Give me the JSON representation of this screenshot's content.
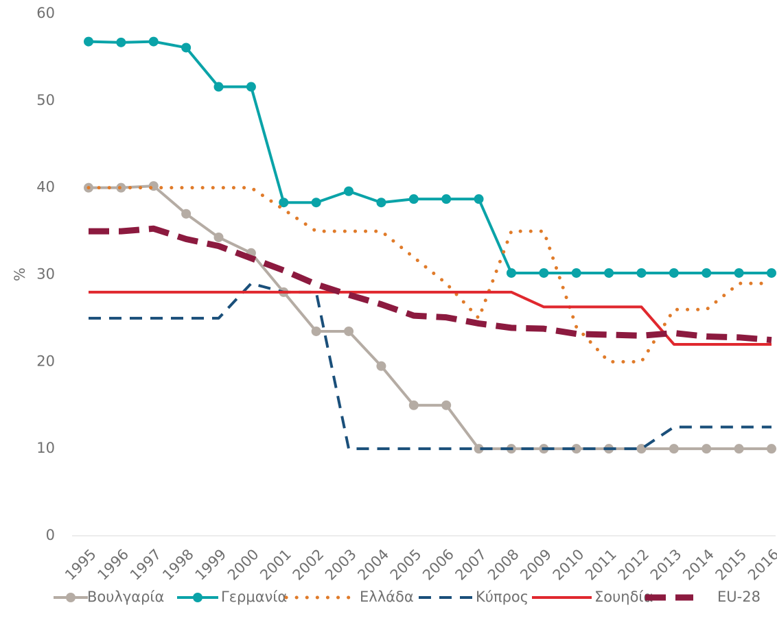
{
  "chart_data": {
    "type": "line",
    "y_label": "%",
    "categories": [
      "1995",
      "1996",
      "1997",
      "1998",
      "1999",
      "2000",
      "2001",
      "2002",
      "2003",
      "2004",
      "2005",
      "2006",
      "2007",
      "2008",
      "2009",
      "2010",
      "2011",
      "2012",
      "2013",
      "2014",
      "2015",
      "2016"
    ],
    "ylim": [
      0,
      60
    ],
    "yticks": [
      0,
      10,
      20,
      30,
      40,
      50,
      60
    ],
    "legend": "bottom",
    "series": [
      {
        "name": "Βουλγαρία",
        "color": "#b5aca4",
        "line_style": "solid",
        "marker": true,
        "values": [
          40,
          40,
          40.2,
          37,
          34.3,
          32.5,
          28,
          23.5,
          23.5,
          19.5,
          15,
          15,
          10,
          10,
          10,
          10,
          10,
          10,
          10,
          10,
          10,
          10
        ]
      },
      {
        "name": "Γερμανία",
        "color": "#0aa3a8",
        "line_style": "solid",
        "marker": true,
        "values": [
          56.8,
          56.7,
          56.8,
          56.1,
          51.6,
          51.6,
          38.3,
          38.3,
          39.6,
          38.3,
          38.7,
          38.7,
          38.7,
          30.2,
          30.2,
          30.2,
          30.2,
          30.2,
          30.2,
          30.2,
          30.2,
          30.2
        ]
      },
      {
        "name": "Ελλάδα",
        "color": "#e07b2a",
        "line_style": "dotted",
        "marker": false,
        "values": [
          40,
          40,
          40,
          40,
          40,
          40,
          37.5,
          35,
          35,
          35,
          32,
          29,
          25,
          35,
          35,
          24,
          20,
          20,
          26,
          26,
          29,
          29
        ]
      },
      {
        "name": "Κύπρος",
        "color": "#1a4f7a",
        "line_style": "dashed",
        "marker": false,
        "values": [
          25,
          25,
          25,
          25,
          25,
          29,
          28,
          28,
          10,
          10,
          10,
          10,
          10,
          10,
          10,
          10,
          10,
          10,
          12.5,
          12.5,
          12.5,
          12.5
        ]
      },
      {
        "name": "Σουηδία",
        "color": "#e0282e",
        "line_style": "solid",
        "marker": false,
        "values": [
          28,
          28,
          28,
          28,
          28,
          28,
          28,
          28,
          28,
          28,
          28,
          28,
          28,
          28,
          26.3,
          26.3,
          26.3,
          26.3,
          22,
          22,
          22,
          22
        ]
      },
      {
        "name": "EU-28",
        "color": "#8c1a3f",
        "line_style": "thick-dashed",
        "marker": false,
        "values": [
          35,
          35,
          35.3,
          34.1,
          33.3,
          31.9,
          30.5,
          28.9,
          27.7,
          26.6,
          25.3,
          25.1,
          24.4,
          23.9,
          23.8,
          23.2,
          23.1,
          23,
          23.3,
          22.9,
          22.8,
          22.5
        ]
      }
    ]
  }
}
